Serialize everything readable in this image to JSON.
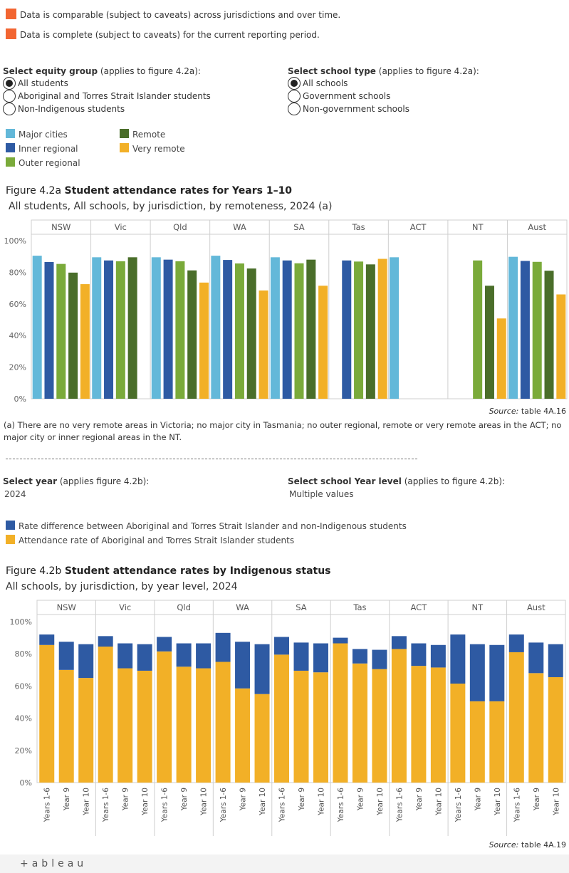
{
  "criteria": [
    {
      "text": "Data is comparable (subject to caveats) across jurisdictions and over time.",
      "color": "#f26531"
    },
    {
      "text": "Data is complete (subject to caveats) for the current reporting period.",
      "color": "#f26531"
    }
  ],
  "equity_filter": {
    "label": "Select equity group",
    "hint": "(applies to figure 4.2a):",
    "options": [
      "All students",
      "Aboriginal and Torres Strait Islander students",
      "Non-Indigenous students"
    ],
    "selected": 0
  },
  "school_type_filter": {
    "label": "Select school type",
    "hint": "(applies to figure 4.2a):",
    "options": [
      "All schools",
      "Government schools",
      "Non-government schools"
    ],
    "selected": 0
  },
  "legend_a": [
    {
      "label": "Major cities",
      "color": "#63b8d9"
    },
    {
      "label": "Remote",
      "color": "#4a6e2a"
    },
    {
      "label": "Inner regional",
      "color": "#2e5aa3"
    },
    {
      "label": "Very remote",
      "color": "#f2b027"
    },
    {
      "label": "Outer regional",
      "color": "#7aaa3a"
    }
  ],
  "fig_a": {
    "number": "Figure 4.2a",
    "title": "Student attendance rates for Years 1–10",
    "subtitle": "All students, All schools, by jurisdiction, by remoteness, 2024 (a)",
    "source_label": "Source:",
    "source_table": "table 4A.16",
    "note": "(a) There are no very remote areas in Victoria; no major city in Tasmania; no outer regional, remote or very remote areas in the ACT; no major city or inner regional areas in the NT."
  },
  "year_filter": {
    "label": "Select year",
    "hint": "(applies figure 4.2b):",
    "value": "2024"
  },
  "level_filter": {
    "label": "Select school Year level",
    "hint": "(applies to figure 4.2b):",
    "value": "Multiple values"
  },
  "legend_b": [
    {
      "label": "Rate difference between Aboriginal and Torres Strait Islander and non-Indigenous students",
      "color": "#2e5aa3"
    },
    {
      "label": "Attendance rate of Aboriginal and Torres Strait Islander students",
      "color": "#f2b027"
    }
  ],
  "fig_b": {
    "number": "Figure 4.2b",
    "title": "Student attendance rates by Indigenous status",
    "subtitle": "All schools, by jurisdiction, by year level, 2024",
    "source_label": "Source:",
    "source_table": "table 4A.19"
  },
  "footer": {
    "logo": "+ableau"
  },
  "chart_data": [
    {
      "type": "bar",
      "categories": [
        "NSW",
        "Vic",
        "Qld",
        "WA",
        "SA",
        "Tas",
        "ACT",
        "NT",
        "Aust"
      ],
      "series": [
        {
          "name": "Major cities",
          "color": "#63b8d9",
          "values": [
            90.5,
            89.5,
            89.5,
            90.5,
            89.5,
            null,
            89.5,
            null,
            89.8
          ]
        },
        {
          "name": "Inner regional",
          "color": "#2e5aa3",
          "values": [
            86.5,
            87.5,
            88,
            87.8,
            87.5,
            87.5,
            null,
            null,
            87.2
          ]
        },
        {
          "name": "Outer regional",
          "color": "#7aaa3a",
          "values": [
            85.3,
            87,
            87,
            85.6,
            85.7,
            86.8,
            null,
            87.5,
            86.6
          ]
        },
        {
          "name": "Remote",
          "color": "#4a6e2a",
          "values": [
            79.8,
            89.5,
            81.2,
            82.4,
            88,
            85,
            null,
            71.5,
            81
          ]
        },
        {
          "name": "Very remote",
          "color": "#f2b027",
          "values": [
            72.5,
            null,
            73.5,
            68.5,
            71.5,
            88.5,
            null,
            50.8,
            66
          ]
        }
      ],
      "ylim": [
        0,
        100
      ],
      "yticks": [
        "0%",
        "20%",
        "40%",
        "60%",
        "80%",
        "100%"
      ]
    },
    {
      "type": "bar",
      "stacked": true,
      "categories": [
        "NSW",
        "Vic",
        "Qld",
        "WA",
        "SA",
        "Tas",
        "ACT",
        "NT",
        "Aust"
      ],
      "sub_categories": [
        "Years 1-6",
        "Year 9",
        "Year 10"
      ],
      "series": [
        {
          "name": "Attendance rate of Aboriginal and Torres Strait Islander students",
          "color": "#f2b027",
          "values": [
            [
              85.5,
              70,
              65
            ],
            [
              84.5,
              71,
              69.5
            ],
            [
              81.5,
              72,
              71
            ],
            [
              75,
              58.5,
              55
            ],
            [
              79.5,
              69.5,
              68.5
            ],
            [
              86.5,
              74,
              70.5
            ],
            [
              83,
              72.5,
              71.5
            ],
            [
              61.5,
              50.5,
              50.5
            ],
            [
              81,
              68,
              65.5
            ]
          ]
        },
        {
          "name": "Rate difference between Aboriginal and Torres Strait Islander and non-Indigenous students",
          "color": "#2e5aa3",
          "values": [
            [
              6.5,
              17.5,
              21
            ],
            [
              6.5,
              15.5,
              16.5
            ],
            [
              9,
              14.5,
              15.5
            ],
            [
              18,
              29,
              31
            ],
            [
              11,
              17.5,
              18
            ],
            [
              3.5,
              9,
              12
            ],
            [
              8,
              14,
              14
            ],
            [
              30.5,
              35.5,
              35
            ],
            [
              11,
              19,
              20.5
            ]
          ]
        }
      ],
      "ylim": [
        0,
        100
      ],
      "yticks": [
        "0%",
        "20%",
        "40%",
        "60%",
        "80%",
        "100%"
      ]
    }
  ]
}
